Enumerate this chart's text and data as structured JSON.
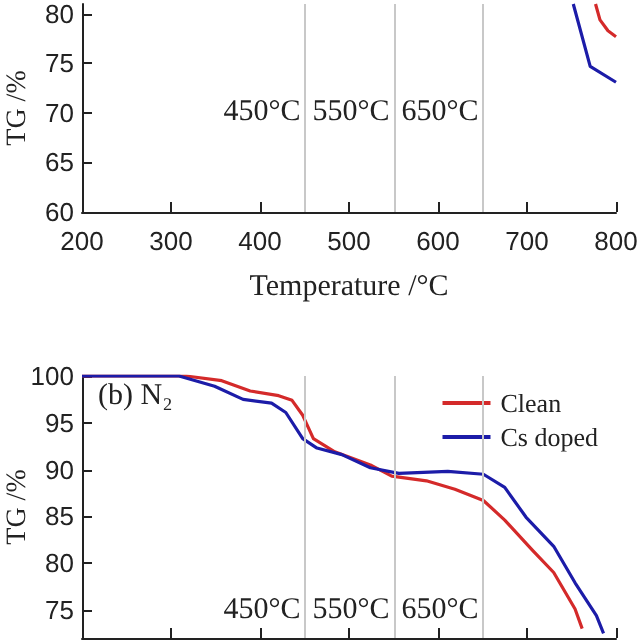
{
  "chart_data": [
    {
      "type": "line",
      "xlabel": "Temperature /°C",
      "ylabel": "TG /%",
      "xlim": [
        200,
        800
      ],
      "xticks": [
        200,
        300,
        400,
        500,
        600,
        700,
        800
      ],
      "ylim": [
        60,
        81
      ],
      "yticks": [
        60,
        65,
        70,
        75,
        80
      ],
      "legend": false,
      "grid": false,
      "series": [
        {
          "color": "#d42a2a",
          "x": [
            777,
            782,
            791,
            800
          ],
          "values": [
            81,
            79.4,
            78.3,
            77.7
          ]
        },
        {
          "color": "#1c1ca8",
          "x": [
            752,
            771,
            800
          ],
          "values": [
            81,
            74.7,
            73.1
          ]
        }
      ],
      "ref_lines": [
        {
          "axis": "x",
          "value": 450,
          "label": "450°C",
          "color": "#c8c8c8",
          "line_style": "solid"
        },
        {
          "axis": "x",
          "value": 550,
          "label": "550°C",
          "color": "#c8c8c8",
          "line_style": "solid"
        },
        {
          "axis": "x",
          "value": 650,
          "label": "650°C",
          "color": "#c8c8c8",
          "line_style": "solid"
        }
      ]
    },
    {
      "type": "line",
      "ylabel": "TG /%",
      "annotations": [
        "(b) N₂"
      ],
      "xlim": [
        200,
        800
      ],
      "ylim": [
        72,
        100
      ],
      "yticks": [
        75,
        80,
        85,
        90,
        95,
        100
      ],
      "tick_labels": "y",
      "legend": "top right",
      "grid": false,
      "series": [
        {
          "name": "Clean",
          "color": "#d42a2a",
          "x": [
            200,
            317,
            357,
            389,
            421,
            436,
            448,
            460,
            484,
            524,
            548,
            587,
            619,
            651,
            675,
            706,
            730,
            754,
            762
          ],
          "values": [
            100,
            100,
            99.5,
            98.4,
            97.9,
            97.4,
            95.8,
            93.3,
            91.9,
            90.5,
            89.3,
            88.8,
            87.9,
            86.7,
            84.6,
            81.4,
            79.0,
            75.1,
            73.0
          ]
        },
        {
          "name": "Cs doped",
          "color": "#1c1ca8",
          "x": [
            200,
            309,
            349,
            381,
            413,
            429,
            448,
            464,
            492,
            524,
            556,
            611,
            651,
            675,
            699,
            730,
            754,
            778,
            786
          ],
          "values": [
            100,
            100,
            98.9,
            97.5,
            97.1,
            96.1,
            93.3,
            92.3,
            91.6,
            90.2,
            89.6,
            89.8,
            89.5,
            88.1,
            84.9,
            81.8,
            77.9,
            74.4,
            72.5
          ]
        }
      ],
      "ref_lines": [
        {
          "axis": "x",
          "value": 450,
          "label": "450°C",
          "color": "#c8c8c8",
          "line_style": "solid"
        },
        {
          "axis": "x",
          "value": 550,
          "label": "550°C",
          "color": "#c8c8c8",
          "line_style": "solid"
        },
        {
          "axis": "x",
          "value": 650,
          "label": "650°C",
          "color": "#c8c8c8",
          "line_style": "solid"
        }
      ]
    }
  ]
}
